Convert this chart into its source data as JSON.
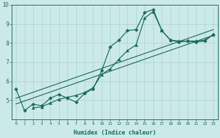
{
  "title": "",
  "xlabel": "Humidex (Indice chaleur)",
  "ylabel": "",
  "bg_color": "#cce9e9",
  "grid_color": "#aad0d0",
  "line_color": "#1a6b5a",
  "xlim": [
    -0.5,
    23.5
  ],
  "ylim": [
    4.0,
    10.0
  ],
  "yticks": [
    5,
    6,
    7,
    8,
    9,
    10
  ],
  "xticks": [
    0,
    1,
    2,
    3,
    4,
    5,
    6,
    7,
    8,
    9,
    10,
    11,
    12,
    13,
    14,
    15,
    16,
    17,
    18,
    19,
    20,
    21,
    22,
    23
  ],
  "series": [
    {
      "x": [
        0,
        1,
        2,
        3,
        4,
        5,
        6,
        7,
        8,
        9,
        10,
        11,
        12,
        13,
        14,
        15,
        16,
        17,
        18,
        19,
        20,
        21,
        22,
        23
      ],
      "y": [
        5.6,
        4.45,
        4.8,
        4.7,
        5.1,
        5.3,
        5.1,
        4.9,
        5.35,
        5.6,
        6.55,
        7.8,
        8.15,
        8.65,
        8.7,
        9.6,
        9.75,
        8.65,
        8.15,
        8.05,
        8.1,
        8.05,
        8.1,
        8.45
      ],
      "marker": "D",
      "markersize": 2.5,
      "linewidth": 0.9
    },
    {
      "x": [
        2,
        3,
        4,
        5,
        6,
        7,
        8,
        9,
        10,
        11,
        12,
        13,
        14,
        15,
        16,
        17,
        18,
        19,
        20,
        21,
        22,
        23
      ],
      "y": [
        4.6,
        4.65,
        4.85,
        5.05,
        5.15,
        5.25,
        5.4,
        5.65,
        6.35,
        6.65,
        7.15,
        7.6,
        7.9,
        9.3,
        9.65,
        8.65,
        8.15,
        8.1,
        8.1,
        8.1,
        8.15,
        8.45
      ],
      "marker": "^",
      "markersize": 3.0,
      "linewidth": 0.9
    },
    {
      "x": [
        0,
        23
      ],
      "y": [
        4.8,
        8.4
      ],
      "marker": "None",
      "markersize": 0,
      "linewidth": 0.85
    },
    {
      "x": [
        0,
        23
      ],
      "y": [
        5.1,
        8.7
      ],
      "marker": "None",
      "markersize": 0,
      "linewidth": 0.85
    }
  ]
}
